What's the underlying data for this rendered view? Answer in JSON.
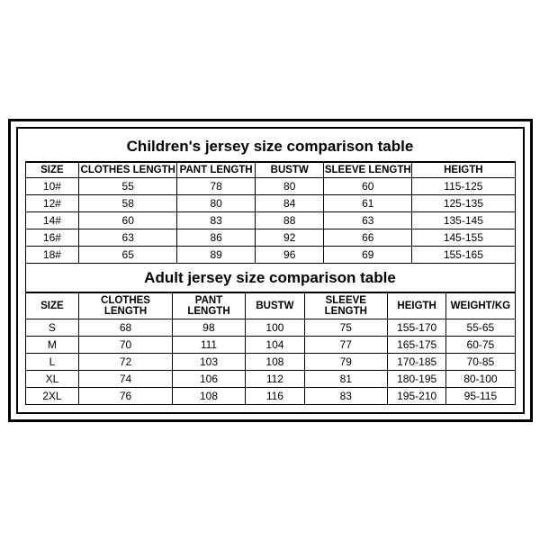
{
  "children": {
    "title": "Children's jersey size comparison table",
    "columns": [
      "SIZE",
      "CLOTHES LENGTH",
      "PANT LENGTH",
      "BUSTW",
      "SLEEVE LENGTH",
      "HEIGTH"
    ],
    "rows": [
      [
        "10#",
        "55",
        "78",
        "80",
        "60",
        "115-125"
      ],
      [
        "12#",
        "58",
        "80",
        "84",
        "61",
        "125-135"
      ],
      [
        "14#",
        "60",
        "83",
        "88",
        "63",
        "135-145"
      ],
      [
        "16#",
        "63",
        "86",
        "92",
        "66",
        "145-155"
      ],
      [
        "18#",
        "65",
        "89",
        "96",
        "69",
        "155-165"
      ]
    ]
  },
  "adult": {
    "title": "Adult jersey size comparison table",
    "columns": [
      "SIZE",
      "CLOTHES LENGTH",
      "PANT LENGTH",
      "BUSTW",
      "SLEEVE LENGTH",
      "HEIGTH",
      "WEIGHT/KG"
    ],
    "rows": [
      [
        "S",
        "68",
        "98",
        "100",
        "75",
        "155-170",
        "55-65"
      ],
      [
        "M",
        "70",
        "111",
        "104",
        "77",
        "165-175",
        "60-75"
      ],
      [
        "L",
        "72",
        "103",
        "108",
        "79",
        "170-185",
        "70-85"
      ],
      [
        "XL",
        "74",
        "106",
        "112",
        "81",
        "180-195",
        "80-100"
      ],
      [
        "2XL",
        "76",
        "108",
        "116",
        "83",
        "195-210",
        "95-115"
      ]
    ]
  }
}
